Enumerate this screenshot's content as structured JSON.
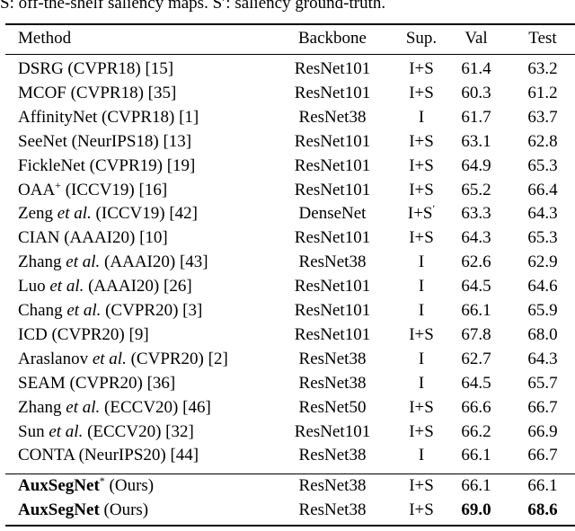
{
  "caption": "S: off-the-shelf saliency maps. S′: saliency ground-truth.",
  "header": {
    "method": "Method",
    "backbone": "Backbone",
    "sup": "Sup.",
    "val": "Val",
    "test": "Test"
  },
  "rows": [
    {
      "method": "DSRG (CVPR18) [15]",
      "backbone": "ResNet101",
      "sup": "I+S",
      "val": "61.4",
      "test": "63.2"
    },
    {
      "method": "MCOF (CVPR18) [35]",
      "backbone": "ResNet101",
      "sup": "I+S",
      "val": "60.3",
      "test": "61.2"
    },
    {
      "method": "AffinityNet (CVPR18) [1]",
      "backbone": "ResNet38",
      "sup": "I",
      "val": "61.7",
      "test": "63.7"
    },
    {
      "method": "SeeNet (NeurIPS18) [13]",
      "backbone": "ResNet101",
      "sup": "I+S",
      "val": "63.1",
      "test": "62.8"
    },
    {
      "method": "FickleNet (CVPR19) [19]",
      "backbone": "ResNet101",
      "sup": "I+S",
      "val": "64.9",
      "test": "65.3"
    },
    {
      "method": "OAA",
      "method_sup": "+",
      "method_rest": "(ICCV19) [16]",
      "backbone": "ResNet101",
      "sup": "I+S",
      "val": "65.2",
      "test": "66.4"
    },
    {
      "method": "Zeng",
      "method_italic": "et al.",
      "method_rest": "(ICCV19) [42]",
      "backbone": "DenseNet",
      "sup": "I+S",
      "sup_mark": "′",
      "val": "63.3",
      "test": "64.3"
    },
    {
      "method": "CIAN (AAAI20) [10]",
      "backbone": "ResNet101",
      "sup": "I+S",
      "val": "64.3",
      "test": "65.3"
    },
    {
      "method": "Zhang",
      "method_italic": "et al.",
      "method_rest": "(AAAI20) [43]",
      "backbone": "ResNet38",
      "sup": "I",
      "val": "62.6",
      "test": "62.9"
    },
    {
      "method": "Luo",
      "method_italic": "et al.",
      "method_rest": "(AAAI20) [26]",
      "backbone": "ResNet101",
      "sup": "I",
      "val": "64.5",
      "test": "64.6"
    },
    {
      "method": "Chang",
      "method_italic": "et al.",
      "method_rest": "(CVPR20) [3]",
      "backbone": "ResNet101",
      "sup": "I",
      "val": "66.1",
      "test": "65.9"
    },
    {
      "method": "ICD (CVPR20) [9]",
      "backbone": "ResNet101",
      "sup": "I+S",
      "val": "67.8",
      "test": "68.0"
    },
    {
      "method": "Araslanov",
      "method_italic": "et al.",
      "method_rest": "(CVPR20) [2]",
      "backbone": "ResNet38",
      "sup": "I",
      "val": "62.7",
      "test": "64.3"
    },
    {
      "method": "SEAM (CVPR20) [36]",
      "backbone": "ResNet38",
      "sup": "I",
      "val": "64.5",
      "test": "65.7"
    },
    {
      "method": "Zhang",
      "method_italic": "et al.",
      "method_rest": "(ECCV20) [46]",
      "backbone": "ResNet50",
      "sup": "I+S",
      "val": "66.6",
      "test": "66.7"
    },
    {
      "method": "Sun",
      "method_italic": "et al.",
      "method_rest": "(ECCV20) [32]",
      "backbone": "ResNet101",
      "sup": "I+S",
      "val": "66.2",
      "test": "66.9"
    },
    {
      "method": "CONTA (NeurIPS20) [44]",
      "backbone": "ResNet38",
      "sup": "I",
      "val": "66.1",
      "test": "66.7"
    },
    {
      "method": "AuxSegNet",
      "method_sup": "*",
      "method_rest": "(Ours)",
      "backbone": "ResNet38",
      "sup": "I+S",
      "val": "66.1",
      "test": "66.1",
      "bold_name": true
    },
    {
      "method": "AuxSegNet",
      "method_rest": "(Ours)",
      "backbone": "ResNet38",
      "sup": "I+S",
      "val": "69.0",
      "test": "68.6",
      "bold_name": true,
      "bold_scores": true
    }
  ]
}
